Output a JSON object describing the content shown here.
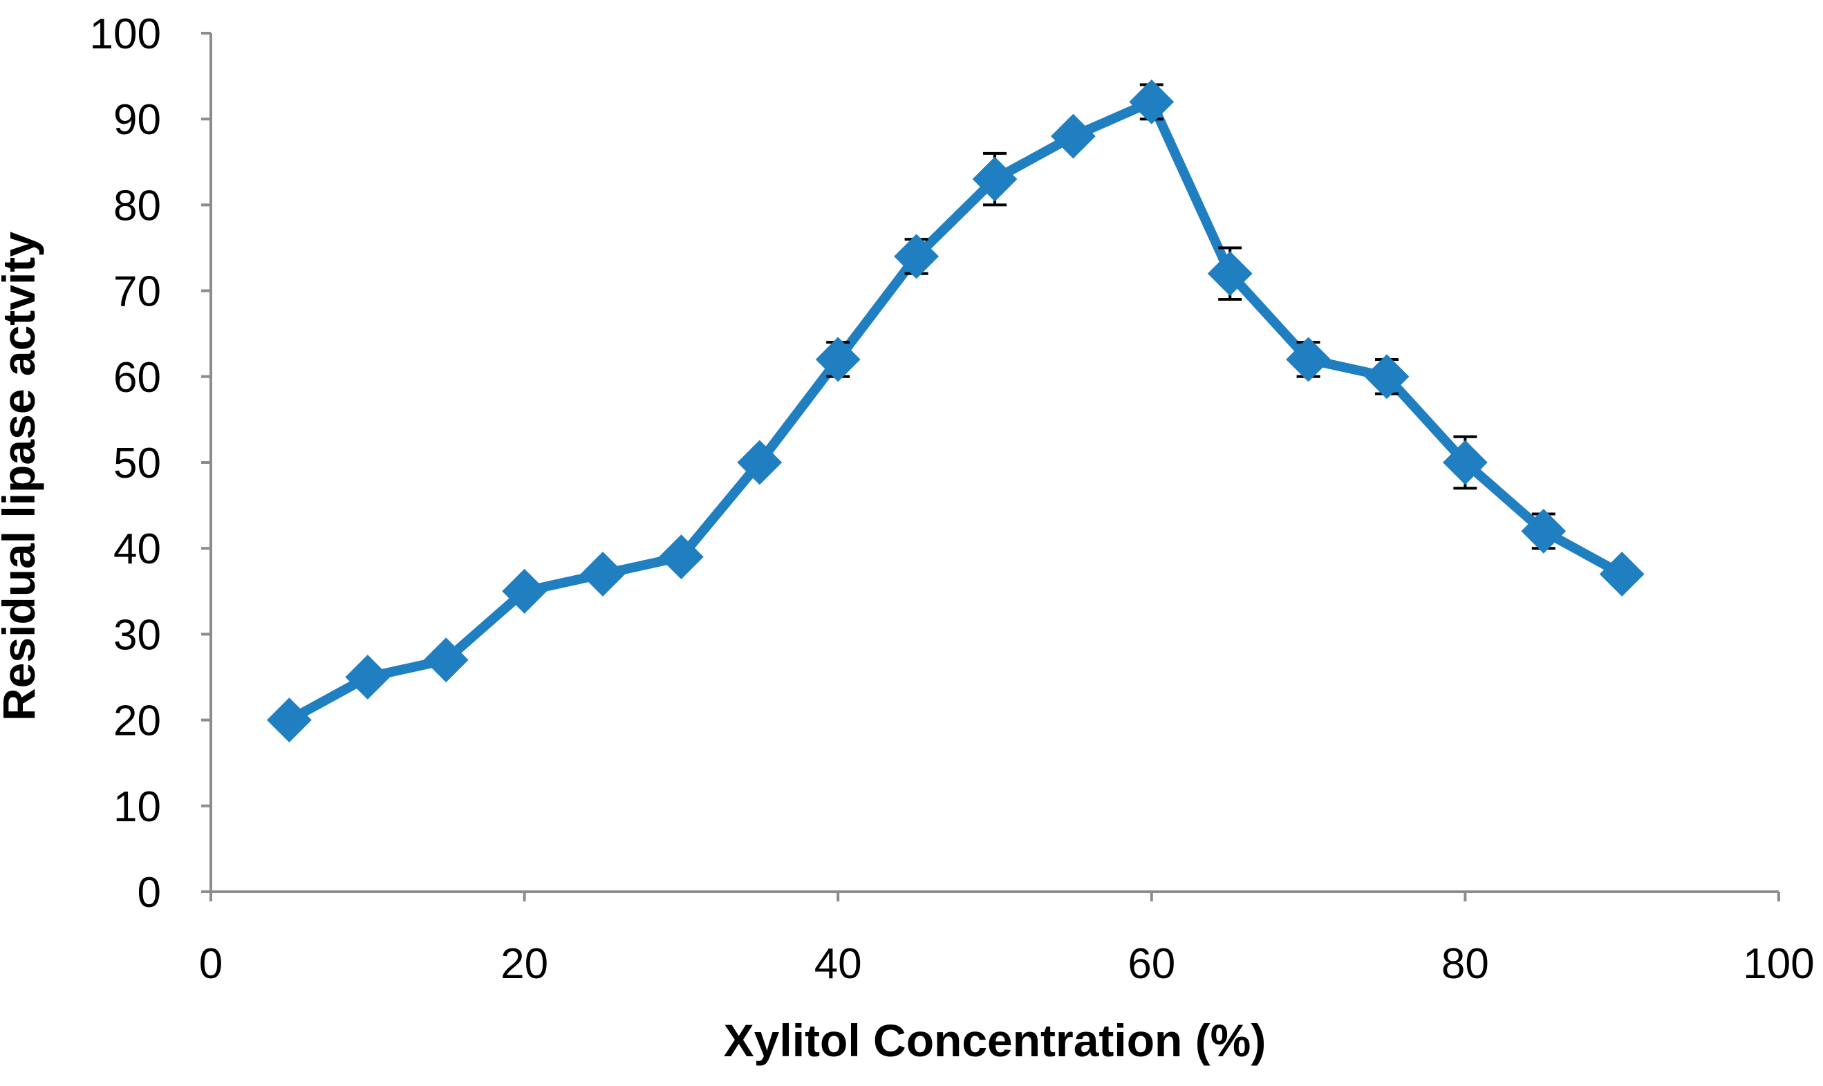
{
  "chart_data": {
    "type": "line",
    "title": "",
    "xlabel": "Xylitol Concentration (%)",
    "ylabel": "Residual lipase actvity",
    "xlim": [
      0,
      100
    ],
    "ylim": [
      0,
      100
    ],
    "xticks": [
      0,
      20,
      40,
      60,
      80,
      100
    ],
    "yticks": [
      0,
      10,
      20,
      30,
      40,
      50,
      60,
      70,
      80,
      90,
      100
    ],
    "grid": false,
    "legend": "none",
    "series": [
      {
        "color": "#1f7fc1",
        "marker": "diamond",
        "x": [
          5,
          10,
          15,
          20,
          25,
          30,
          35,
          40,
          45,
          50,
          55,
          60,
          65,
          70,
          75,
          80,
          85,
          90
        ],
        "y": [
          20,
          25,
          27,
          35,
          37,
          39,
          50,
          62,
          74,
          83,
          88,
          92,
          72,
          62,
          60,
          50,
          42,
          37
        ],
        "error": [
          1,
          1,
          1,
          1,
          1,
          1,
          1,
          2,
          2,
          3,
          1,
          2,
          3,
          2,
          2,
          3,
          2,
          1
        ]
      }
    ]
  }
}
